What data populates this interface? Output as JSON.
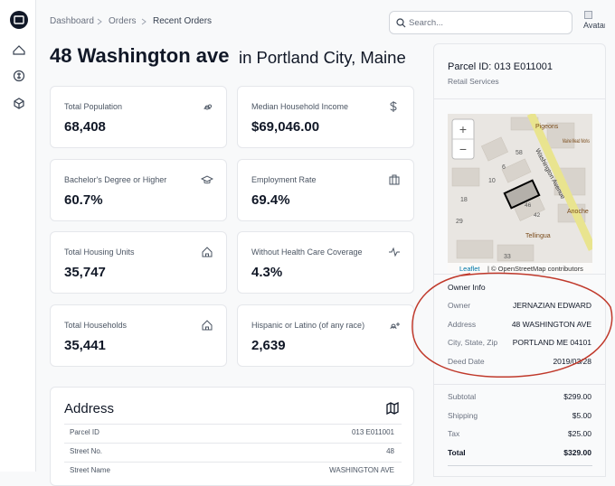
{
  "breadcrumb": [
    "Dashboard",
    "Orders",
    "Recent Orders"
  ],
  "search_placeholder": "Search...",
  "avatar": "Avatar",
  "heading": {
    "title": "48 Washington ave",
    "subtitle": "in Portland City, Maine"
  },
  "stats": [
    {
      "label": "Total Population",
      "value": "68,408"
    },
    {
      "label": "Median Household Income",
      "value": "$69,046.00"
    },
    {
      "label": "Bachelor's Degree or Higher",
      "value": "60.7%"
    },
    {
      "label": "Employment Rate",
      "value": "69.4%"
    },
    {
      "label": "Total Housing Units",
      "value": "35,747"
    },
    {
      "label": "Without Health Care Coverage",
      "value": "4.3%"
    },
    {
      "label": "Total Households",
      "value": "35,441"
    },
    {
      "label": "Hispanic or Latino (of any race)",
      "value": "2,639"
    }
  ],
  "address": {
    "title": "Address",
    "rows": [
      [
        "Parcel ID",
        "013 E011001"
      ],
      [
        "Street No.",
        "48"
      ],
      [
        "Street Name",
        "WASHINGTON AVE"
      ]
    ]
  },
  "parcel": {
    "title": "Parcel ID: 013 E011001",
    "subtitle": "Retail Services",
    "map": {
      "zoom_in": "+",
      "zoom_out": "−",
      "labels": [
        "Washington Avenue",
        "Pigeons",
        "Maine Mead Works",
        "Anoche",
        "Tellingua",
        "58",
        "6",
        "10",
        "46",
        "42",
        "18",
        "29",
        "33"
      ],
      "attribution_link": "Leaflet",
      "attribution": "| © OpenStreetMap contributors"
    },
    "owner_info": {
      "title": "Owner Info",
      "rows": [
        [
          "Owner",
          "JERNAZIAN EDWARD"
        ],
        [
          "Address",
          "48 WASHINGTON AVE"
        ],
        [
          "City, State, Zip",
          "PORTLAND ME 04101"
        ],
        [
          "Deed Date",
          "2019/03/28"
        ]
      ]
    },
    "totals": [
      [
        "Subtotal",
        "$299.00"
      ],
      [
        "Shipping",
        "$5.00"
      ],
      [
        "Tax",
        "$25.00"
      ],
      [
        "Total",
        "$329.00"
      ]
    ]
  }
}
